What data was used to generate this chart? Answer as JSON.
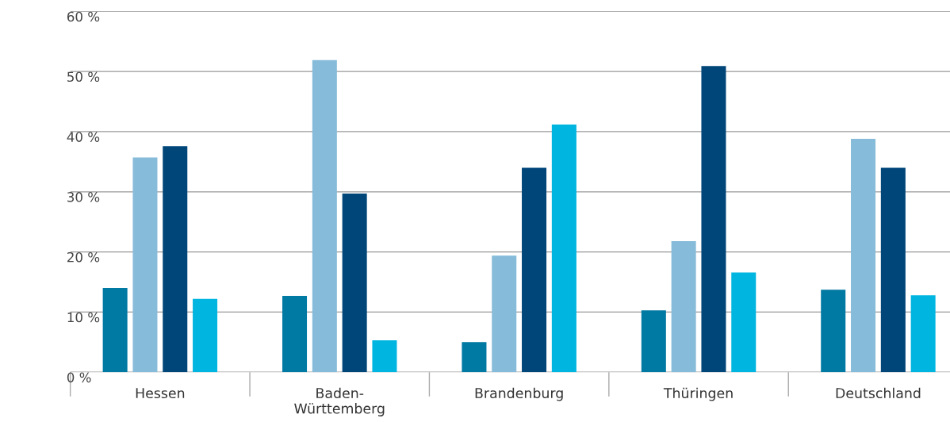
{
  "chart_data": {
    "type": "bar",
    "categories": [
      "Hessen",
      "Baden-\nWürttemberg",
      "Brandenburg",
      "Thüringen",
      "Deutschland"
    ],
    "series": [
      {
        "color": "#0079a3",
        "values": [
          14.0,
          12.7,
          5.0,
          10.3,
          13.7
        ]
      },
      {
        "color": "#86bcd9",
        "values": [
          35.7,
          51.9,
          19.4,
          21.8,
          38.8
        ]
      },
      {
        "color": "#004679",
        "values": [
          37.6,
          29.7,
          34.0,
          50.9,
          34.0
        ]
      },
      {
        "color": "#00b5df",
        "values": [
          12.2,
          5.3,
          41.2,
          16.6,
          12.8
        ]
      }
    ],
    "ylim": [
      0,
      60
    ],
    "yticks": [
      {
        "value": 0,
        "label": "0 %"
      },
      {
        "value": 10,
        "label": "10 %"
      },
      {
        "value": 20,
        "label": "20 %"
      },
      {
        "value": 30,
        "label": "30 %"
      },
      {
        "value": 40,
        "label": "40 %"
      },
      {
        "value": 50,
        "label": "50 %"
      },
      {
        "value": 60,
        "label": "60 %"
      }
    ],
    "grid": "y",
    "legend": false
  }
}
